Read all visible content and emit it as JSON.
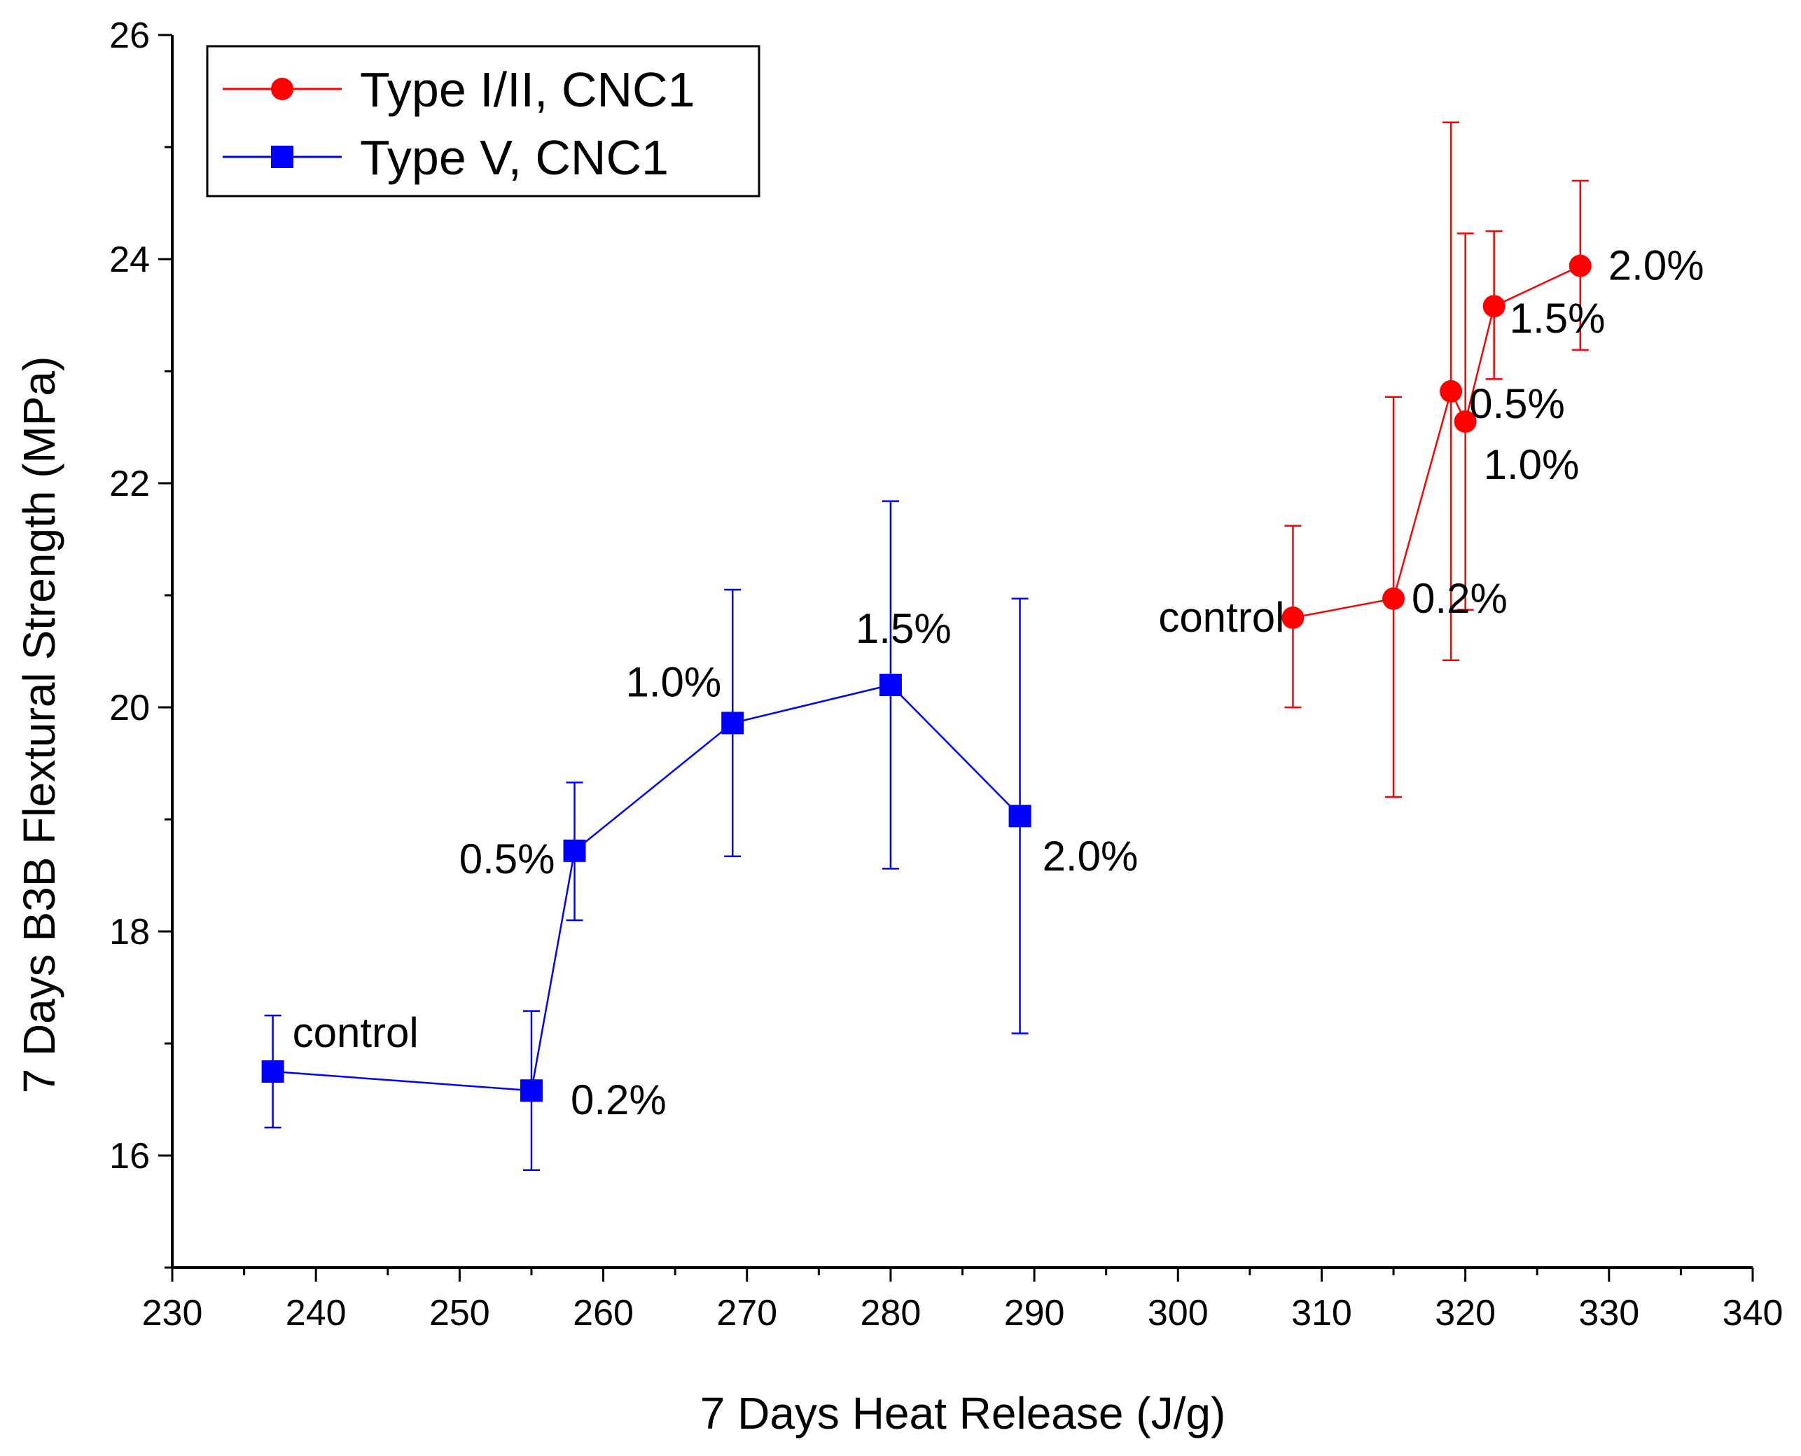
{
  "chart_data": {
    "type": "scatter",
    "title": "",
    "xlabel": "7 Days Heat Release (J/g)",
    "ylabel": "7 Days B3B Flextural Strength (MPa)",
    "xlim": [
      230,
      340
    ],
    "ylim": [
      15,
      26
    ],
    "x_ticks": [
      "230",
      "240",
      "250",
      "260",
      "270",
      "280",
      "290",
      "300",
      "310",
      "320",
      "330",
      "340"
    ],
    "y_ticks": [
      "16",
      "18",
      "20",
      "22",
      "24",
      "26"
    ],
    "grid": false,
    "legend_position": "top-left",
    "series": [
      {
        "name": "Type I/II, CNC1",
        "color": "#ff0000",
        "marker": "circle",
        "points": [
          {
            "x": 308,
            "y": 20.8,
            "err_low": 20.0,
            "err_high": 21.62,
            "label": "control"
          },
          {
            "x": 315,
            "y": 20.97,
            "err_low": 19.2,
            "err_high": 22.77,
            "label": "0.2%"
          },
          {
            "x": 319,
            "y": 22.82,
            "err_low": 20.42,
            "err_high": 25.22,
            "label": "0.5%"
          },
          {
            "x": 320,
            "y": 22.55,
            "err_low": 20.87,
            "err_high": 24.23,
            "label": "1.0%"
          },
          {
            "x": 322,
            "y": 23.58,
            "err_low": 22.93,
            "err_high": 24.25,
            "label": "1.5%"
          },
          {
            "x": 328,
            "y": 23.94,
            "err_low": 23.19,
            "err_high": 24.7,
            "label": "2.0%"
          }
        ]
      },
      {
        "name": "Type V, CNC1",
        "color": "#0000ff",
        "marker": "square",
        "points": [
          {
            "x": 237,
            "y": 16.75,
            "err_low": 16.25,
            "err_high": 17.25,
            "label": "control"
          },
          {
            "x": 255,
            "y": 16.58,
            "err_low": 15.87,
            "err_high": 17.29,
            "label": "0.2%"
          },
          {
            "x": 258,
            "y": 18.72,
            "err_low": 18.1,
            "err_high": 19.33,
            "label": "0.5%"
          },
          {
            "x": 269,
            "y": 19.86,
            "err_low": 18.67,
            "err_high": 21.05,
            "label": "1.0%"
          },
          {
            "x": 280,
            "y": 20.2,
            "err_low": 18.56,
            "err_high": 21.84,
            "label": "1.5%"
          },
          {
            "x": 289,
            "y": 19.03,
            "err_low": 17.09,
            "err_high": 20.97,
            "label": "2.0%"
          }
        ]
      }
    ]
  }
}
